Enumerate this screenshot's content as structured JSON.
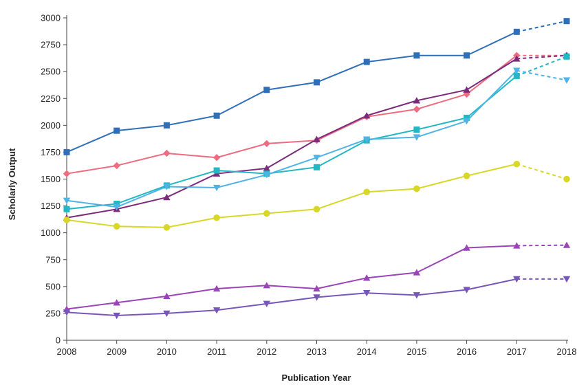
{
  "chart_data": {
    "type": "line",
    "title": "",
    "xlabel": "Publication Year",
    "ylabel": "Scholarly Output",
    "x": [
      2008,
      2009,
      2010,
      2011,
      2012,
      2013,
      2014,
      2015,
      2016,
      2017,
      2018
    ],
    "x_ticks": [
      "2008",
      "2009",
      "2010",
      "2011",
      "2012",
      "2013",
      "2014",
      "2015",
      "2016",
      "2017",
      "2018"
    ],
    "ylim": [
      0,
      3000
    ],
    "y_ticks": [
      0,
      250,
      500,
      750,
      1000,
      1250,
      1500,
      1750,
      2000,
      2250,
      2500,
      2750,
      3000
    ],
    "grid": false,
    "legend": "none",
    "dashed_last_segment": "2017-2018",
    "series": [
      {
        "color": "#2f6fba",
        "marker": "square",
        "values": [
          1750,
          1950,
          2000,
          2090,
          2330,
          2400,
          2590,
          2650,
          2650,
          2870,
          2970
        ]
      },
      {
        "color": "#ee6c80",
        "marker": "diamond",
        "values": [
          1550,
          1625,
          1740,
          1700,
          1830,
          1860,
          2080,
          2150,
          2290,
          2650,
          2650
        ]
      },
      {
        "color": "#7a2b7c",
        "marker": "triangle-up",
        "values": [
          1140,
          1220,
          1330,
          1550,
          1600,
          1870,
          2090,
          2230,
          2330,
          2620,
          2650
        ]
      },
      {
        "color": "#23b7c3",
        "marker": "square",
        "values": [
          1220,
          1270,
          1440,
          1580,
          1550,
          1610,
          1860,
          1960,
          2070,
          2460,
          2640
        ]
      },
      {
        "color": "#4fb3e6",
        "marker": "triangle-down",
        "values": [
          1300,
          1240,
          1430,
          1420,
          1540,
          1700,
          1870,
          1890,
          2040,
          2510,
          2420
        ]
      },
      {
        "color": "#d8d727",
        "marker": "circle",
        "values": [
          1120,
          1060,
          1050,
          1140,
          1180,
          1220,
          1380,
          1410,
          1530,
          1640,
          1500
        ]
      },
      {
        "color": "#9a44b8",
        "marker": "triangle-up",
        "values": [
          290,
          350,
          410,
          480,
          510,
          480,
          580,
          630,
          860,
          880,
          885
        ]
      },
      {
        "color": "#7755b9",
        "marker": "triangle-down",
        "values": [
          260,
          230,
          250,
          280,
          340,
          400,
          440,
          420,
          470,
          570,
          570
        ]
      }
    ]
  }
}
